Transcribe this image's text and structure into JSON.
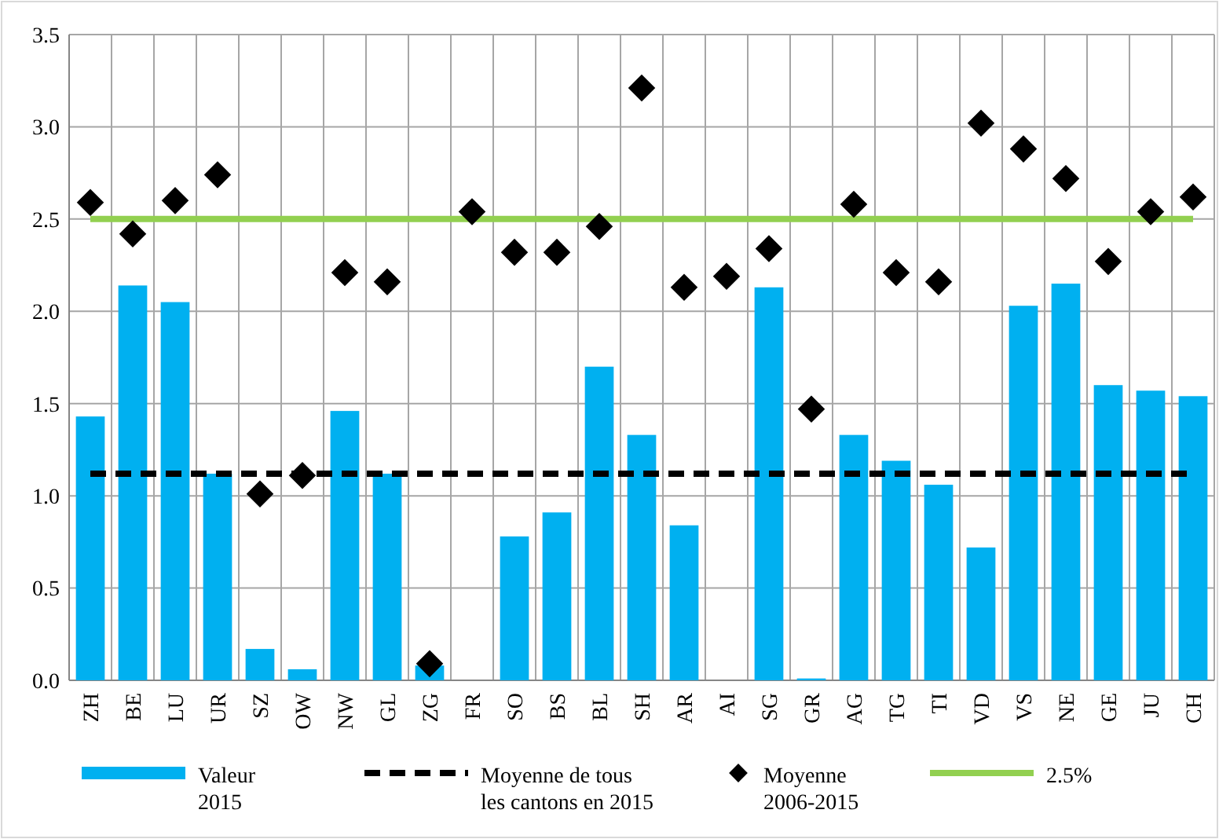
{
  "chart_data": {
    "type": "bar",
    "categories": [
      "ZH",
      "BE",
      "LU",
      "UR",
      "SZ",
      "OW",
      "NW",
      "GL",
      "ZG",
      "FR",
      "SO",
      "BS",
      "BL",
      "SH",
      "AR",
      "AI",
      "SG",
      "GR",
      "AG",
      "TG",
      "TI",
      "VD",
      "VS",
      "NE",
      "GE",
      "JU",
      "CH"
    ],
    "series": [
      {
        "name": "Valeur 2015",
        "color": "#00b0f0",
        "values": [
          1.43,
          2.14,
          2.05,
          1.12,
          0.17,
          0.06,
          1.46,
          1.12,
          0.08,
          null,
          0.78,
          0.91,
          1.7,
          1.33,
          0.84,
          null,
          2.13,
          0.01,
          1.33,
          1.19,
          1.06,
          0.72,
          2.03,
          2.15,
          1.6,
          1.57,
          1.54
        ]
      },
      {
        "name": "Moyenne 2006-2015",
        "type": "scatter",
        "marker": "diamond",
        "color": "#000000",
        "values": [
          2.59,
          2.42,
          2.6,
          2.74,
          1.01,
          1.11,
          2.21,
          2.16,
          0.09,
          2.54,
          2.32,
          2.32,
          2.46,
          3.21,
          2.13,
          2.19,
          2.34,
          1.47,
          2.58,
          2.21,
          2.16,
          3.02,
          2.88,
          2.72,
          2.27,
          2.54,
          2.62
        ]
      }
    ],
    "ref_lines": [
      {
        "axis": "y",
        "value": 1.12,
        "label": "Moyenne de tous les cantons en 2015",
        "color": "#000000",
        "line_style": "dashed"
      },
      {
        "axis": "y",
        "value": 2.5,
        "label": "2.5%",
        "color": "#92d050",
        "line_style": "solid"
      }
    ],
    "ylim": [
      0,
      3.5
    ],
    "yticks": [
      {
        "value": 0,
        "label": "0.0"
      },
      {
        "value": 0.5,
        "label": "0.5"
      },
      {
        "value": 1,
        "label": "1.0"
      },
      {
        "value": 1.5,
        "label": "1.5"
      },
      {
        "value": 2,
        "label": "2.0"
      },
      {
        "value": 2.5,
        "label": "2.5"
      },
      {
        "value": 3,
        "label": "3.0"
      },
      {
        "value": 3.5,
        "label": "3.5"
      }
    ],
    "grid": true,
    "legend": "bottom"
  }
}
